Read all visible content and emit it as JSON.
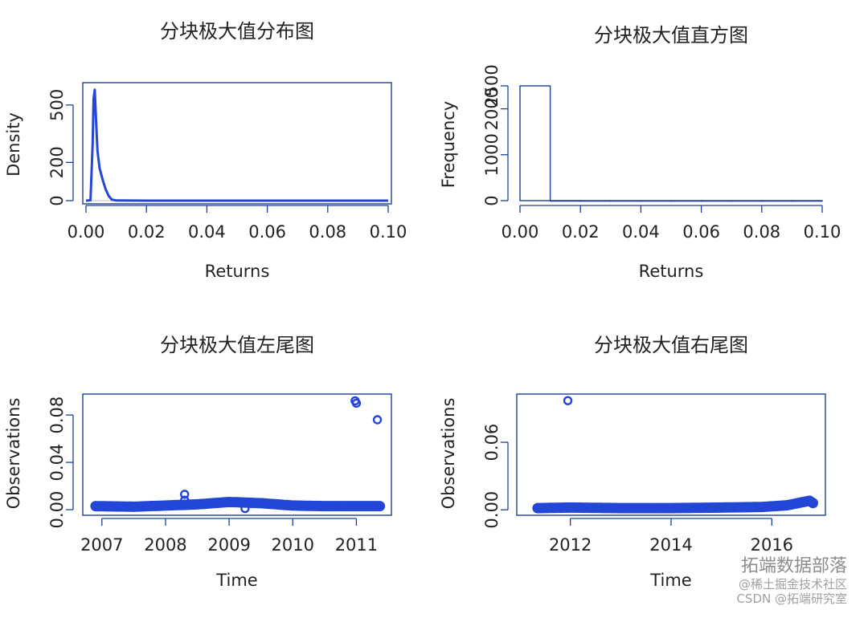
{
  "chart_data": [
    {
      "type": "line",
      "title": "分块极大值分布图",
      "xlabel": "Returns",
      "ylabel": "Density",
      "xlim": [
        0,
        0.1
      ],
      "ylim": [
        0,
        600
      ],
      "xticks": [
        "0.00",
        "0.02",
        "0.04",
        "0.06",
        "0.08",
        "0.10"
      ],
      "yticks": [
        "0",
        "200",
        "500"
      ],
      "grid": false,
      "series": [
        {
          "values": [
            {
              "x": 0.0,
              "y": 0
            },
            {
              "x": 0.0015,
              "y": 2
            },
            {
              "x": 0.0022,
              "y": 300
            },
            {
              "x": 0.0025,
              "y": 530
            },
            {
              "x": 0.0029,
              "y": 580
            },
            {
              "x": 0.0033,
              "y": 430
            },
            {
              "x": 0.0038,
              "y": 260
            },
            {
              "x": 0.0045,
              "y": 170
            },
            {
              "x": 0.0055,
              "y": 110
            },
            {
              "x": 0.0065,
              "y": 60
            },
            {
              "x": 0.0075,
              "y": 25
            },
            {
              "x": 0.0085,
              "y": 6
            },
            {
              "x": 0.01,
              "y": 1
            },
            {
              "x": 0.02,
              "y": 0
            },
            {
              "x": 0.1,
              "y": 0
            }
          ]
        }
      ]
    },
    {
      "type": "bar",
      "title": "分块极大值直方图",
      "xlabel": "Returns",
      "ylabel": "Frequency",
      "xlim": [
        0,
        0.1
      ],
      "ylim": [
        0,
        2500
      ],
      "xticks": [
        "0.00",
        "0.02",
        "0.04",
        "0.06",
        "0.08",
        "0.10"
      ],
      "yticks": [
        "0",
        "1000",
        "2000",
        "2500"
      ],
      "bins": [
        {
          "from": 0.0,
          "to": 0.01,
          "value": 2500
        },
        {
          "from": 0.01,
          "to": 0.02,
          "value": 1
        },
        {
          "from": 0.02,
          "to": 0.03,
          "value": 0
        },
        {
          "from": 0.03,
          "to": 0.04,
          "value": 0
        },
        {
          "from": 0.04,
          "to": 0.05,
          "value": 0
        },
        {
          "from": 0.05,
          "to": 0.06,
          "value": 0
        },
        {
          "from": 0.06,
          "to": 0.07,
          "value": 0
        },
        {
          "from": 0.07,
          "to": 0.08,
          "value": 0
        },
        {
          "from": 0.08,
          "to": 0.09,
          "value": 0
        },
        {
          "from": 0.09,
          "to": 0.1,
          "value": 0
        }
      ]
    },
    {
      "type": "scatter",
      "title": "分块极大值左尾图",
      "xlabel": "Time",
      "ylabel": "Observations",
      "xlim": [
        2006.75,
        2011.5
      ],
      "ylim": [
        -0.002,
        0.095
      ],
      "xticks": [
        "2007",
        "2008",
        "2009",
        "2010",
        "2011"
      ],
      "yticks": [
        "0.00",
        "0.04",
        "0.08"
      ],
      "band": [
        {
          "x": 2006.9,
          "y": 0.003
        },
        {
          "x": 2007.5,
          "y": 0.0025
        },
        {
          "x": 2008.0,
          "y": 0.0035
        },
        {
          "x": 2008.5,
          "y": 0.0045
        },
        {
          "x": 2009.0,
          "y": 0.0065
        },
        {
          "x": 2009.5,
          "y": 0.0055
        },
        {
          "x": 2010.0,
          "y": 0.0035
        },
        {
          "x": 2010.5,
          "y": 0.003
        },
        {
          "x": 2011.0,
          "y": 0.003
        },
        {
          "x": 2011.4,
          "y": 0.003
        }
      ],
      "points": [
        {
          "x": 2008.3,
          "y": 0.013
        },
        {
          "x": 2008.3,
          "y": 0.008
        },
        {
          "x": 2009.25,
          "y": 0.001
        },
        {
          "x": 2010.98,
          "y": 0.092
        },
        {
          "x": 2011.0,
          "y": 0.09
        },
        {
          "x": 2011.33,
          "y": 0.076
        }
      ]
    },
    {
      "type": "scatter",
      "title": "分块极大值右尾图",
      "xlabel": "Time",
      "ylabel": "Observations",
      "xlim": [
        2011.0,
        2017.0
      ],
      "ylim": [
        -0.002,
        0.1
      ],
      "xticks": [
        "2012",
        "2014",
        "2016"
      ],
      "yticks": [
        "0.00",
        "0.06"
      ],
      "band": [
        {
          "x": 2011.35,
          "y": 0.0015
        },
        {
          "x": 2012.0,
          "y": 0.002
        },
        {
          "x": 2013.0,
          "y": 0.0015
        },
        {
          "x": 2014.0,
          "y": 0.0015
        },
        {
          "x": 2015.0,
          "y": 0.002
        },
        {
          "x": 2015.8,
          "y": 0.0025
        },
        {
          "x": 2016.3,
          "y": 0.004
        },
        {
          "x": 2016.75,
          "y": 0.008
        },
        {
          "x": 2016.85,
          "y": 0.005
        }
      ],
      "points": [
        {
          "x": 2011.95,
          "y": 0.097
        }
      ]
    }
  ],
  "watermark": {
    "brand": "拓端数据部落",
    "line1": "@稀土掘金技术社区",
    "line2": "CSDN @拓端研究室"
  },
  "colors": {
    "axis": "#1c3f94",
    "series": "#2346d6"
  }
}
